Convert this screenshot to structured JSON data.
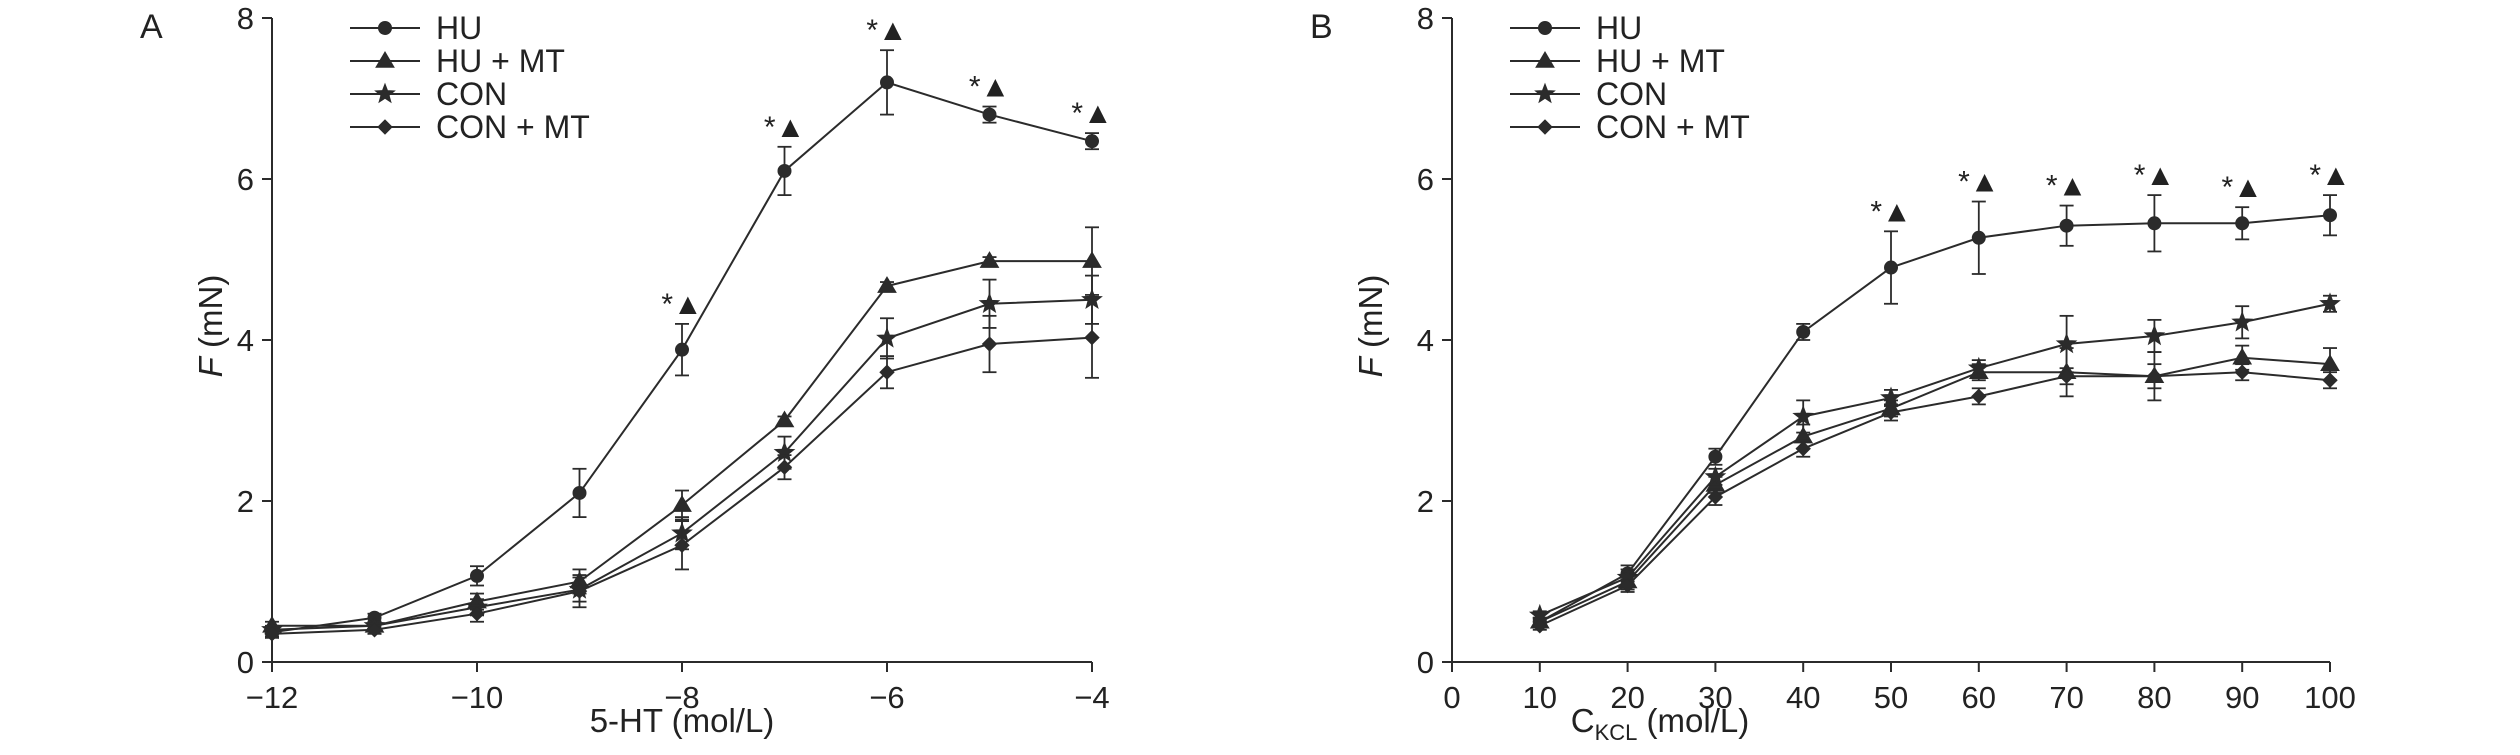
{
  "figure": {
    "panels": [
      {
        "letter": "A",
        "xlabel": "5-HT (mol/L)",
        "ylabel_italic": "F",
        "ylabel_rest": " (mN)"
      },
      {
        "letter": "B",
        "xlabel_main": "C",
        "xlabel_sub": "KCL",
        "xlabel_rest": " (mol/L)",
        "ylabel_italic": "F",
        "ylabel_rest": " (mN)"
      }
    ]
  },
  "chart_data": [
    {
      "type": "line",
      "panel": "A",
      "xlabel": "5-HT (mol/L)",
      "ylabel": "F (mN)",
      "xlim": [
        -12,
        -4
      ],
      "ylim": [
        0,
        8
      ],
      "x_ticks": [
        -12,
        -10,
        -8,
        -6,
        -4
      ],
      "x_tick_labels": [
        "−12",
        "−10",
        "−8",
        "−6",
        "−4"
      ],
      "y_ticks": [
        0,
        2,
        4,
        6,
        8
      ],
      "legend_position": "top-left",
      "grid": false,
      "x": [
        -12,
        -11,
        -10,
        -9,
        -8,
        -7,
        -6,
        -5,
        -4
      ],
      "series": [
        {
          "name": "HU",
          "marker": "circle",
          "values": [
            0.37,
            0.55,
            1.07,
            2.1,
            3.88,
            6.1,
            7.2,
            6.8,
            6.47
          ],
          "errors": [
            0.05,
            0.05,
            0.12,
            0.3,
            0.32,
            0.3,
            0.4,
            0.1,
            0.1
          ]
        },
        {
          "name": "HU + MT",
          "marker": "triangle",
          "values": [
            0.45,
            0.45,
            0.75,
            1.0,
            1.95,
            3.0,
            4.67,
            4.98,
            4.98
          ],
          "errors": [
            0.05,
            0.05,
            0.1,
            0.15,
            0.18,
            0.05,
            0.05,
            0.05,
            0.42
          ]
        },
        {
          "name": "CON",
          "marker": "star",
          "values": [
            0.4,
            0.45,
            0.68,
            0.9,
            1.6,
            2.6,
            4.02,
            4.45,
            4.5
          ],
          "errors": [
            0.05,
            0.05,
            0.1,
            0.15,
            0.2,
            0.2,
            0.25,
            0.3,
            0.3
          ]
        },
        {
          "name": "CON + MT",
          "marker": "diamond",
          "values": [
            0.35,
            0.4,
            0.6,
            0.88,
            1.45,
            2.42,
            3.6,
            3.95,
            4.03
          ],
          "errors": [
            0.05,
            0.05,
            0.1,
            0.2,
            0.3,
            0.15,
            0.2,
            0.35,
            0.5
          ]
        }
      ],
      "significance": [
        {
          "x": -8,
          "label": "*▲"
        },
        {
          "x": -7,
          "label": "*▲"
        },
        {
          "x": -6,
          "label": "*▲"
        },
        {
          "x": -5,
          "label": "*▲"
        },
        {
          "x": -4,
          "label": "*▲"
        }
      ]
    },
    {
      "type": "line",
      "panel": "B",
      "xlabel": "CKCL (mol/L)",
      "ylabel": "F (mN)",
      "xlim": [
        0,
        100
      ],
      "ylim": [
        0,
        8
      ],
      "x_ticks": [
        0,
        10,
        20,
        30,
        40,
        50,
        60,
        70,
        80,
        90,
        100
      ],
      "x_tick_labels": [
        "0",
        "10",
        "20",
        "30",
        "40",
        "50",
        "60",
        "70",
        "80",
        "90",
        "100"
      ],
      "y_ticks": [
        0,
        2,
        4,
        6,
        8
      ],
      "legend_position": "top-left",
      "grid": false,
      "x": [
        10,
        20,
        30,
        40,
        50,
        60,
        70,
        80,
        90,
        100
      ],
      "series": [
        {
          "name": "HU",
          "marker": "circle",
          "values": [
            0.5,
            1.1,
            2.55,
            4.1,
            4.9,
            5.27,
            5.42,
            5.45,
            5.45,
            5.55
          ],
          "errors": [
            0.05,
            0.1,
            0.1,
            0.1,
            0.45,
            0.45,
            0.25,
            0.35,
            0.2,
            0.25
          ]
        },
        {
          "name": "HU + MT",
          "marker": "triangle",
          "values": [
            0.5,
            1.0,
            2.2,
            2.8,
            3.15,
            3.6,
            3.6,
            3.55,
            3.78,
            3.7
          ],
          "errors": [
            0.05,
            0.1,
            0.1,
            0.15,
            0.1,
            0.1,
            0.3,
            0.3,
            0.15,
            0.2
          ]
        },
        {
          "name": "CON",
          "marker": "star",
          "values": [
            0.58,
            1.05,
            2.3,
            3.05,
            3.28,
            3.65,
            3.95,
            4.05,
            4.22,
            4.45
          ],
          "errors": [
            0.05,
            0.1,
            0.1,
            0.2,
            0.1,
            0.1,
            0.35,
            0.2,
            0.2,
            0.1
          ]
        },
        {
          "name": "CON + MT",
          "marker": "diamond",
          "values": [
            0.45,
            0.95,
            2.05,
            2.65,
            3.1,
            3.3,
            3.55,
            3.55,
            3.6,
            3.5
          ],
          "errors": [
            0.05,
            0.08,
            0.1,
            0.1,
            0.1,
            0.1,
            0.1,
            0.15,
            0.1,
            0.1
          ]
        }
      ],
      "significance": [
        {
          "x": 50,
          "label": "*▲"
        },
        {
          "x": 60,
          "label": "*▲"
        },
        {
          "x": 70,
          "label": "*▲"
        },
        {
          "x": 80,
          "label": "*▲"
        },
        {
          "x": 90,
          "label": "*▲"
        },
        {
          "x": 100,
          "label": "*▲"
        }
      ]
    }
  ],
  "style": {
    "line_color": "#2b2b2b",
    "text_color": "#222222",
    "background": "#ffffff"
  }
}
